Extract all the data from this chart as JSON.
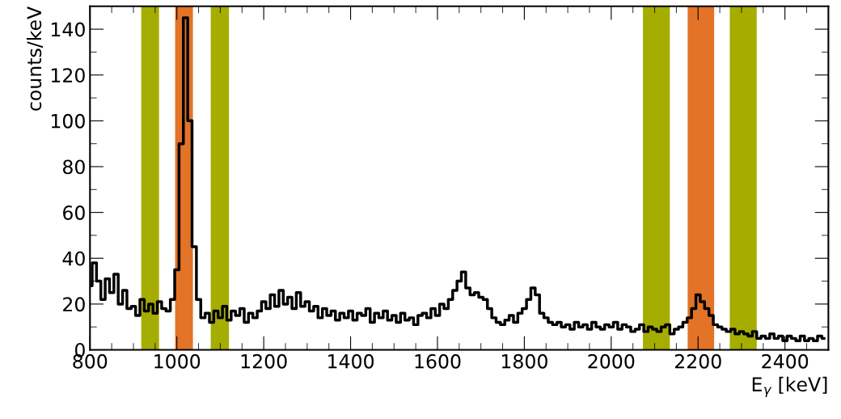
{
  "chart_data": {
    "type": "step",
    "xlabel": "E$_{γ}$ [keV]",
    "ylabel": "counts/keV",
    "x": [
      800,
      810,
      820,
      830,
      840,
      850,
      860,
      870,
      880,
      890,
      900,
      910,
      920,
      930,
      940,
      950,
      960,
      970,
      980,
      990,
      1000,
      1010,
      1020,
      1030,
      1040,
      1050,
      1060,
      1070,
      1080,
      1090,
      1100,
      1110,
      1120,
      1130,
      1140,
      1150,
      1160,
      1170,
      1180,
      1190,
      1200,
      1210,
      1220,
      1230,
      1240,
      1250,
      1260,
      1270,
      1280,
      1290,
      1300,
      1310,
      1320,
      1330,
      1340,
      1350,
      1360,
      1370,
      1380,
      1390,
      1400,
      1410,
      1420,
      1430,
      1440,
      1450,
      1460,
      1470,
      1480,
      1490,
      1500,
      1510,
      1520,
      1530,
      1540,
      1550,
      1560,
      1570,
      1580,
      1590,
      1600,
      1610,
      1620,
      1630,
      1640,
      1650,
      1660,
      1670,
      1680,
      1690,
      1700,
      1710,
      1720,
      1730,
      1740,
      1750,
      1760,
      1770,
      1780,
      1790,
      1800,
      1810,
      1820,
      1830,
      1840,
      1850,
      1860,
      1870,
      1880,
      1890,
      1900,
      1910,
      1920,
      1930,
      1940,
      1950,
      1960,
      1970,
      1980,
      1990,
      2000,
      2010,
      2020,
      2030,
      2040,
      2050,
      2060,
      2070,
      2080,
      2090,
      2100,
      2110,
      2120,
      2130,
      2140,
      2150,
      2160,
      2170,
      2180,
      2190,
      2200,
      2210,
      2220,
      2230,
      2240,
      2250,
      2260,
      2270,
      2280,
      2290,
      2300,
      2310,
      2320,
      2330,
      2340,
      2350,
      2360,
      2370,
      2380,
      2390,
      2400,
      2410,
      2420,
      2430,
      2440,
      2450,
      2460,
      2470,
      2480,
      2490
    ],
    "series": [
      {
        "color": "#000000",
        "values": [
          28,
          38,
          30,
          22,
          31,
          25,
          33,
          20,
          26,
          18,
          19,
          15,
          22,
          17,
          20,
          16,
          21,
          18,
          17,
          22,
          35,
          90,
          145,
          100,
          45,
          22,
          14,
          16,
          12,
          17,
          14,
          19,
          13,
          17,
          15,
          18,
          12,
          16,
          14,
          17,
          21,
          18,
          24,
          19,
          26,
          20,
          23,
          18,
          25,
          19,
          21,
          17,
          19,
          14,
          18,
          15,
          17,
          13,
          16,
          14,
          17,
          13,
          16,
          15,
          18,
          12,
          16,
          14,
          17,
          13,
          15,
          12,
          16,
          13,
          14,
          11,
          15,
          16,
          14,
          18,
          15,
          20,
          18,
          22,
          26,
          30,
          34,
          27,
          24,
          25,
          23,
          22,
          18,
          14,
          12,
          11,
          13,
          15,
          12,
          16,
          18,
          22,
          27,
          24,
          16,
          14,
          12,
          11,
          12,
          10,
          11,
          9,
          12,
          10,
          11,
          9,
          12,
          10,
          9,
          11,
          10,
          12,
          9,
          11,
          10,
          8,
          9,
          11,
          8,
          10,
          9,
          8,
          10,
          11,
          7,
          9,
          10,
          12,
          14,
          18,
          24,
          21,
          18,
          15,
          11,
          10,
          9,
          8,
          9,
          7,
          8,
          7,
          6,
          8,
          5,
          6,
          5,
          7,
          5,
          6,
          4,
          6,
          5,
          4,
          6,
          4,
          5,
          4,
          6,
          5
        ]
      }
    ],
    "xlim": [
      800,
      2500
    ],
    "ylim": [
      0,
      150
    ],
    "xticks": [
      800,
      {
        "value": 850,
        "label": null
      },
      {
        "value": 900,
        "label": null
      },
      {
        "value": 950,
        "label": null
      },
      1000,
      {
        "value": 1050,
        "label": null
      },
      {
        "value": 1100,
        "label": null
      },
      {
        "value": 1150,
        "label": null
      },
      1200,
      {
        "value": 1250,
        "label": null
      },
      {
        "value": 1300,
        "label": null
      },
      {
        "value": 1350,
        "label": null
      },
      1400,
      {
        "value": 1450,
        "label": null
      },
      {
        "value": 1500,
        "label": null
      },
      {
        "value": 1550,
        "label": null
      },
      1600,
      {
        "value": 1650,
        "label": null
      },
      {
        "value": 1700,
        "label": null
      },
      {
        "value": 1750,
        "label": null
      },
      1800,
      {
        "value": 1850,
        "label": null
      },
      {
        "value": 1900,
        "label": null
      },
      {
        "value": 1950,
        "label": null
      },
      2000,
      {
        "value": 2050,
        "label": null
      },
      {
        "value": 2100,
        "label": null
      },
      {
        "value": 2150,
        "label": null
      },
      2200,
      {
        "value": 2250,
        "label": null
      },
      {
        "value": 2300,
        "label": null
      },
      {
        "value": 2350,
        "label": null
      },
      2400,
      {
        "value": 2450,
        "label": null
      }
    ],
    "yticks": [
      0,
      {
        "value": 10,
        "label": null
      },
      20,
      {
        "value": 30,
        "label": null
      },
      40,
      {
        "value": 50,
        "label": null
      },
      60,
      {
        "value": 70,
        "label": null
      },
      80,
      {
        "value": 90,
        "label": null
      },
      100,
      {
        "value": 110,
        "label": null
      },
      120,
      {
        "value": 130,
        "label": null
      },
      140
    ],
    "bands": [
      {
        "axis": "x",
        "from": 918,
        "to": 959,
        "color": "#a5ad00"
      },
      {
        "axis": "x",
        "from": 996,
        "to": 1037,
        "color": "#e37326"
      },
      {
        "axis": "x",
        "from": 1078,
        "to": 1120,
        "color": "#a5ad00"
      },
      {
        "axis": "x",
        "from": 2073,
        "to": 2135,
        "color": "#a5ad00"
      },
      {
        "axis": "x",
        "from": 2176,
        "to": 2237,
        "color": "#e37326"
      },
      {
        "axis": "x",
        "from": 2273,
        "to": 2335,
        "color": "#a5ad00"
      }
    ],
    "grid": false,
    "legend": false
  }
}
